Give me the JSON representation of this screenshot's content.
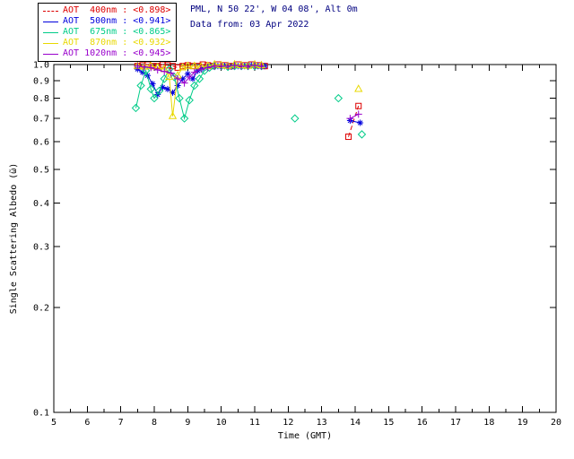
{
  "header": {
    "site_line": "PML, N 50 22', W 04 08', Alt 0m",
    "date_line": "Data from: 03 Apr 2022",
    "text_color": "#000080"
  },
  "legend": {
    "entries": [
      {
        "label": "AOT  400nm : <0.898>",
        "mean": "<0.898>",
        "color": "#dd0000",
        "line_style": "dashed",
        "marker": "square"
      },
      {
        "label": "AOT  500nm : <0.941>",
        "mean": "<0.941>",
        "color": "#0000dd",
        "line_style": "solid",
        "marker": "asterisk"
      },
      {
        "label": "AOT  675nm : <0.865>",
        "mean": "<0.865>",
        "color": "#00cc88",
        "line_style": "solid",
        "marker": "diamond"
      },
      {
        "label": "AOT  870nm : <0.932>",
        "mean": "<0.932>",
        "color": "#e8d800",
        "line_style": "solid",
        "marker": "triangle"
      },
      {
        "label": "AOT 1020nm : <0.945>",
        "mean": "<0.945>",
        "color": "#9900cc",
        "line_style": "solid",
        "marker": "plus"
      }
    ]
  },
  "chart_data": {
    "type": "line",
    "title": "",
    "xlabel": "Time (GMT)",
    "ylabel": "Single Scattering Albedo (ῶ)",
    "xlim": [
      5,
      20
    ],
    "ylim": [
      0.1,
      1.0
    ],
    "yscale": "log",
    "grid": false,
    "x_ticks": [
      5,
      6,
      7,
      8,
      9,
      10,
      11,
      12,
      13,
      14,
      15,
      16,
      17,
      18,
      19,
      20
    ],
    "y_ticks": [
      1.0,
      0.9,
      0.8,
      0.7,
      0.6,
      0.5,
      0.4,
      0.3,
      0.2,
      0.1
    ],
    "y_tick_labels": [
      "1.0",
      "0.9",
      "0.8",
      "0.7",
      "0.6",
      "0.5",
      "0.4",
      "0.3",
      "0.2",
      "0.1"
    ],
    "series": [
      {
        "name": "AOT 400nm",
        "wavelength": "400nm",
        "mean": "<0.898>",
        "color": "#dd0000",
        "marker": "square",
        "dash": "5,3",
        "points": [
          [
            7.5,
            0.99
          ],
          [
            7.65,
            0.995
          ],
          [
            7.8,
            1.0
          ],
          [
            7.95,
            0.99
          ],
          [
            8.1,
            0.99
          ],
          [
            8.25,
            1.0
          ],
          [
            8.4,
            0.995
          ],
          [
            8.55,
            0.99
          ],
          [
            8.7,
            0.98
          ],
          [
            8.85,
            0.99
          ],
          [
            9.0,
            0.995
          ],
          [
            9.15,
            0.99
          ],
          [
            9.3,
            0.99
          ],
          [
            9.45,
            1.0
          ],
          [
            9.6,
            0.995
          ],
          [
            9.75,
            0.99
          ],
          [
            9.9,
            1.0
          ],
          [
            10.1,
            0.995
          ],
          [
            10.3,
            0.99
          ],
          [
            10.5,
            1.0
          ],
          [
            10.7,
            0.995
          ],
          [
            10.9,
            1.0
          ],
          [
            11.1,
            0.995
          ],
          [
            11.3,
            0.99
          ],
          [
            13.8,
            0.62
          ],
          [
            14.1,
            0.76
          ]
        ]
      },
      {
        "name": "AOT 500nm",
        "wavelength": "500nm",
        "mean": "<0.941>",
        "color": "#0000dd",
        "marker": "asterisk",
        "dash": "",
        "points": [
          [
            7.5,
            0.97
          ],
          [
            7.65,
            0.95
          ],
          [
            7.8,
            0.93
          ],
          [
            7.95,
            0.88
          ],
          [
            8.1,
            0.82
          ],
          [
            8.25,
            0.86
          ],
          [
            8.4,
            0.85
          ],
          [
            8.55,
            0.83
          ],
          [
            8.7,
            0.87
          ],
          [
            8.85,
            0.91
          ],
          [
            9.0,
            0.94
          ],
          [
            9.15,
            0.91
          ],
          [
            9.3,
            0.96
          ],
          [
            9.45,
            0.975
          ],
          [
            9.6,
            0.985
          ],
          [
            9.75,
            0.99
          ],
          [
            9.9,
            0.99
          ],
          [
            10.1,
            0.99
          ],
          [
            10.3,
            0.985
          ],
          [
            10.5,
            0.99
          ],
          [
            10.7,
            0.99
          ],
          [
            10.9,
            0.995
          ],
          [
            11.1,
            0.99
          ],
          [
            11.3,
            0.99
          ],
          [
            13.85,
            0.69
          ],
          [
            14.15,
            0.68
          ]
        ]
      },
      {
        "name": "AOT 675nm",
        "wavelength": "675nm",
        "mean": "<0.865>",
        "color": "#00cc88",
        "marker": "diamond",
        "dash": "",
        "points": [
          [
            7.45,
            0.75
          ],
          [
            7.6,
            0.87
          ],
          [
            7.75,
            0.96
          ],
          [
            7.9,
            0.85
          ],
          [
            8.0,
            0.8
          ],
          [
            8.15,
            0.84
          ],
          [
            8.3,
            0.91
          ],
          [
            8.45,
            0.97
          ],
          [
            8.6,
            0.92
          ],
          [
            8.75,
            0.8
          ],
          [
            8.9,
            0.7
          ],
          [
            9.05,
            0.79
          ],
          [
            9.2,
            0.87
          ],
          [
            9.35,
            0.91
          ],
          [
            9.5,
            0.96
          ],
          [
            9.65,
            0.98
          ],
          [
            9.8,
            0.99
          ],
          [
            10.0,
            0.99
          ],
          [
            10.2,
            0.985
          ],
          [
            10.4,
            0.99
          ],
          [
            10.6,
            0.99
          ],
          [
            10.8,
            0.99
          ],
          [
            11.0,
            0.99
          ],
          [
            11.2,
            0.99
          ],
          [
            12.2,
            0.7
          ],
          [
            13.5,
            0.8
          ],
          [
            14.2,
            0.63
          ]
        ]
      },
      {
        "name": "AOT 870nm",
        "wavelength": "870nm",
        "mean": "<0.932>",
        "color": "#e8d800",
        "marker": "triangle",
        "dash": "",
        "points": [
          [
            7.5,
            0.99
          ],
          [
            7.7,
            0.985
          ],
          [
            7.9,
            0.99
          ],
          [
            8.1,
            0.98
          ],
          [
            8.3,
            0.97
          ],
          [
            8.45,
            0.92
          ],
          [
            8.55,
            0.71
          ],
          [
            8.7,
            0.93
          ],
          [
            8.85,
            0.98
          ],
          [
            9.0,
            0.99
          ],
          [
            9.2,
            0.99
          ],
          [
            9.4,
            0.985
          ],
          [
            9.6,
            0.99
          ],
          [
            9.8,
            1.0
          ],
          [
            10.0,
            0.995
          ],
          [
            10.2,
            0.99
          ],
          [
            10.4,
            1.0
          ],
          [
            10.6,
            0.995
          ],
          [
            10.8,
            0.99
          ],
          [
            11.0,
            1.0
          ],
          [
            11.2,
            0.995
          ],
          [
            14.1,
            0.85
          ]
        ]
      },
      {
        "name": "AOT 1020nm",
        "wavelength": "1020nm",
        "mean": "<0.945>",
        "color": "#9900cc",
        "marker": "plus",
        "dash": "",
        "points": [
          [
            7.5,
            0.99
          ],
          [
            7.7,
            0.985
          ],
          [
            7.9,
            0.98
          ],
          [
            8.1,
            0.965
          ],
          [
            8.3,
            0.955
          ],
          [
            8.5,
            0.945
          ],
          [
            8.7,
            0.91
          ],
          [
            8.9,
            0.885
          ],
          [
            9.05,
            0.92
          ],
          [
            9.2,
            0.95
          ],
          [
            9.4,
            0.97
          ],
          [
            9.6,
            0.98
          ],
          [
            9.8,
            0.99
          ],
          [
            10.0,
            0.99
          ],
          [
            10.2,
            0.99
          ],
          [
            10.4,
            0.995
          ],
          [
            10.6,
            0.99
          ],
          [
            10.8,
            0.99
          ],
          [
            11.0,
            0.995
          ],
          [
            11.2,
            0.99
          ],
          [
            13.85,
            0.7
          ],
          [
            14.1,
            0.72
          ]
        ]
      }
    ]
  }
}
